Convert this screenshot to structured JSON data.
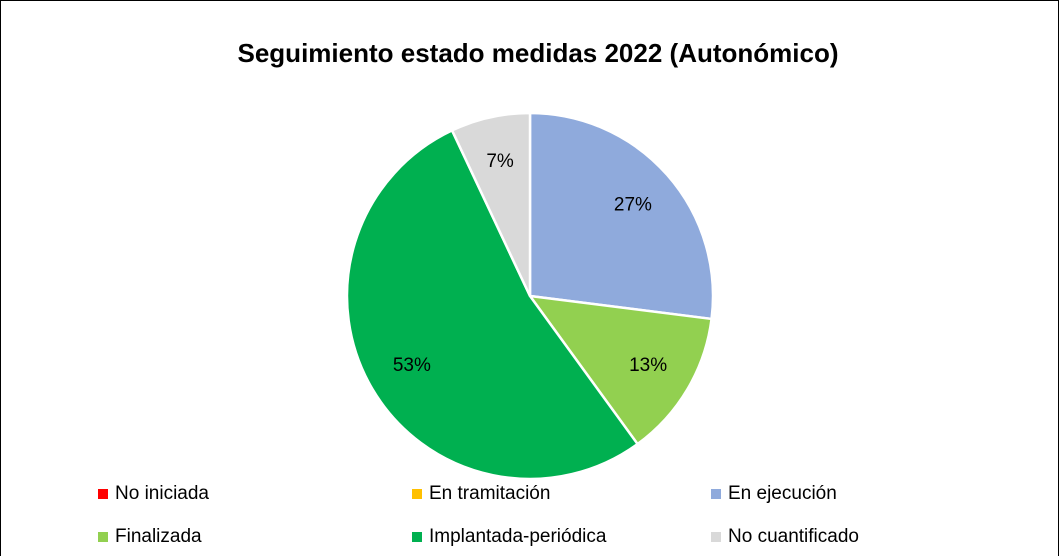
{
  "chart_data": {
    "type": "pie",
    "title": "Seguimiento estado medidas 2022 (Autonómico)",
    "categories": [
      "No iniciada",
      "En tramitación",
      "En ejecución",
      "Finalizada",
      "Implantada-periódica",
      "No cuantificado"
    ],
    "values": [
      0,
      0,
      27,
      13,
      53,
      7
    ],
    "value_labels": [
      null,
      null,
      "27%",
      "13%",
      "53%",
      "7%"
    ],
    "colors": [
      "#ff0000",
      "#ffc000",
      "#8faadc",
      "#92d050",
      "#00b050",
      "#d9d9d9"
    ],
    "legend": "bottom"
  }
}
